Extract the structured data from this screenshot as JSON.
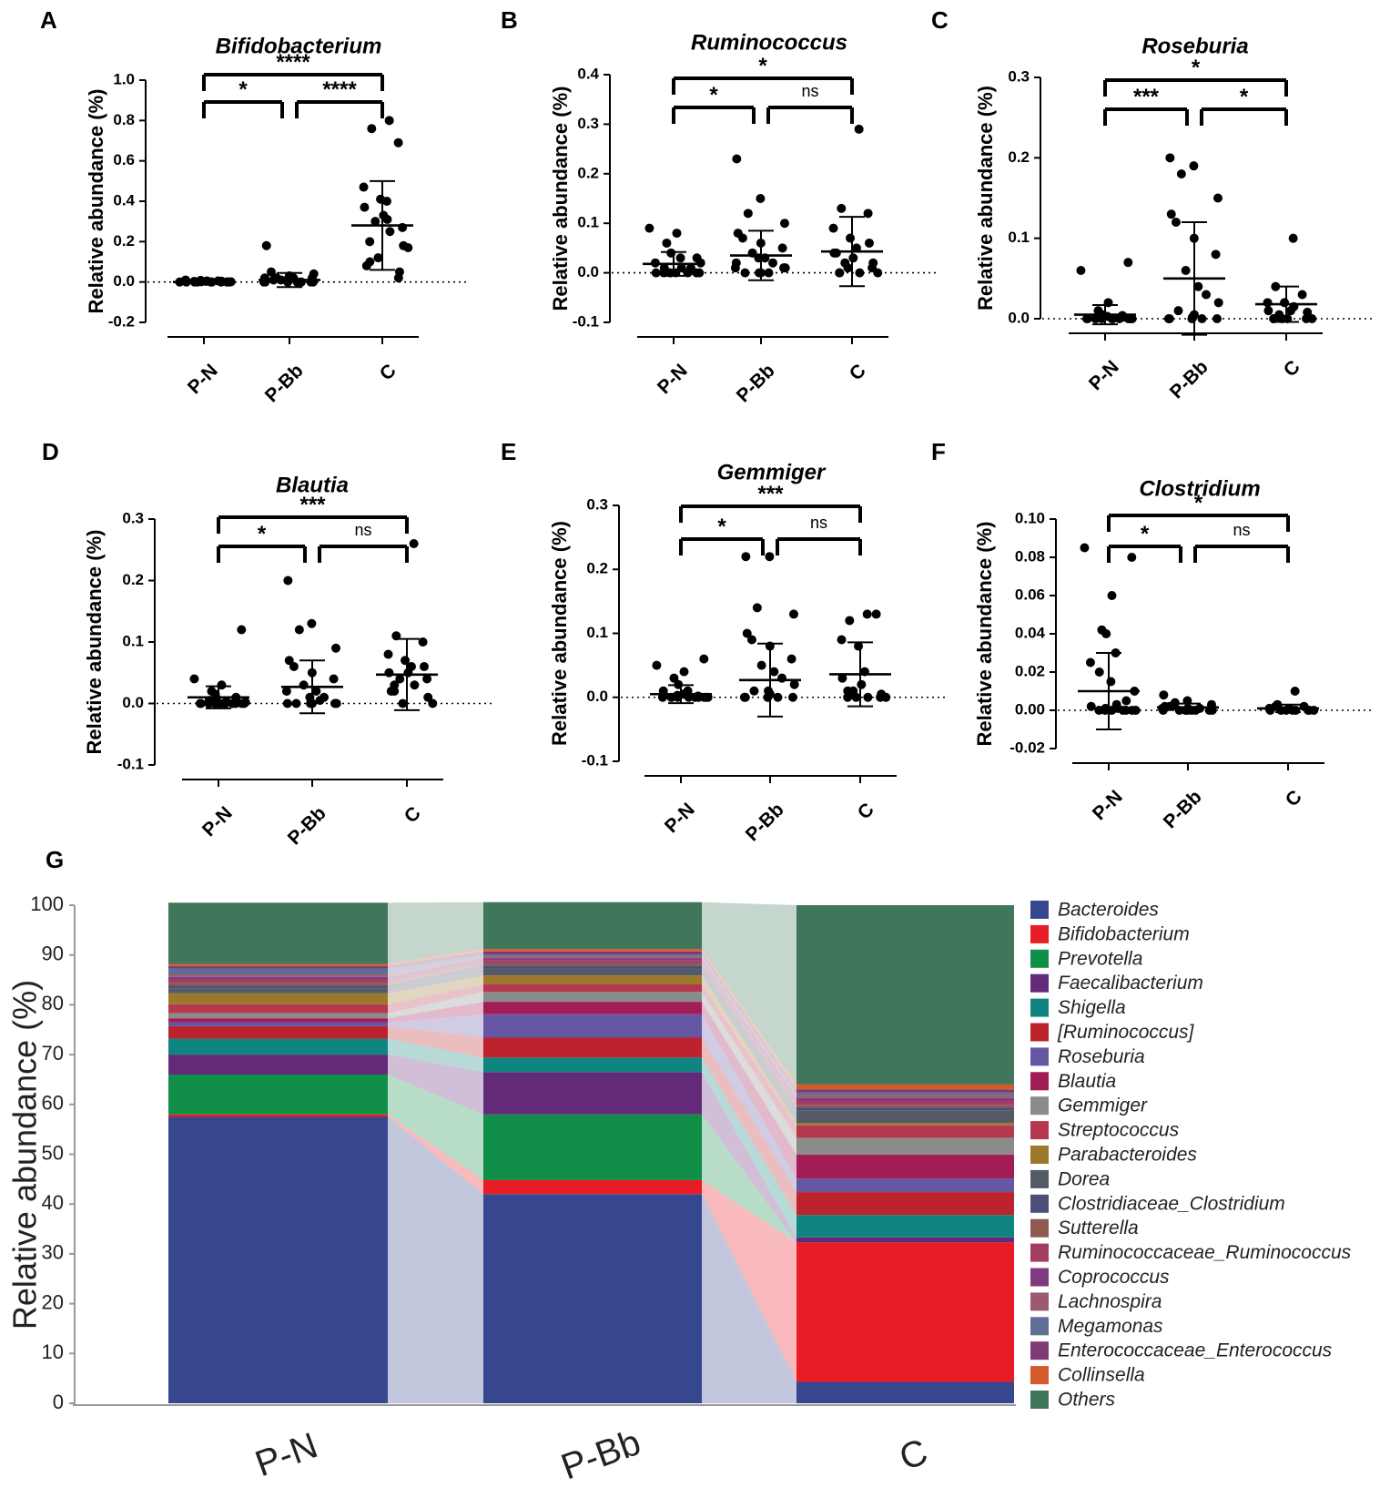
{
  "chart_data": [
    {
      "id": "A",
      "panel_label": "A",
      "type": "scatter",
      "title": "Bifidobacterium",
      "ylabel": "Relative abundance (%)",
      "categories": [
        "P-N",
        "P-Bb",
        "C"
      ],
      "ylim": [
        -0.2,
        1.0
      ],
      "yticks": [
        "1.0",
        "0.8",
        "0.6",
        "0.4",
        "0.2",
        "0.0",
        "-0.2"
      ],
      "mean": [
        0.0,
        0.01,
        0.28
      ],
      "sd": [
        0.006,
        0.035,
        0.22
      ],
      "points": [
        [
          0.0,
          0.0,
          0.005,
          0.0,
          0.002,
          0.0,
          0.01,
          0.0,
          0.003,
          0.0,
          0.004,
          0.0,
          0.001,
          0.0,
          0.008,
          0.0,
          0.002,
          0.0,
          0.003,
          0.005
        ],
        [
          0.0,
          0.01,
          0.02,
          0.0,
          0.18,
          0.05,
          0.03,
          0.0,
          0.01,
          0.02,
          0.0,
          0.04,
          0.01,
          0.0,
          0.02,
          0.0,
          0.03,
          0.01,
          0.0,
          0.02
        ],
        [
          0.8,
          0.76,
          0.69,
          0.47,
          0.41,
          0.4,
          0.37,
          0.33,
          0.3,
          0.27,
          0.25,
          0.2,
          0.18,
          0.17,
          0.12,
          0.1,
          0.08,
          0.05,
          0.02,
          0.31
        ]
      ],
      "comparisons": [
        {
          "pair": "P-N vs C",
          "label": "****"
        },
        {
          "pair": "P-N vs P-Bb",
          "label": "*"
        },
        {
          "pair": "P-Bb vs C",
          "label": "****"
        }
      ]
    },
    {
      "id": "B",
      "panel_label": "B",
      "type": "scatter",
      "title": "Ruminococcus",
      "ylabel": "Relative abundance (%)",
      "categories": [
        "P-N",
        "P-Bb",
        "C"
      ],
      "ylim": [
        -0.1,
        0.4
      ],
      "yticks": [
        "0.4",
        "0.3",
        "0.2",
        "0.1",
        "0.0",
        "-0.1"
      ],
      "mean": [
        0.018,
        0.035,
        0.043
      ],
      "sd": [
        0.024,
        0.05,
        0.07
      ],
      "points": [
        [
          0.0,
          0.09,
          0.08,
          0.06,
          0.04,
          0.03,
          0.02,
          0.01,
          0.0,
          0.0,
          0.005,
          0.0,
          0.02,
          0.01,
          0.0,
          0.03,
          0.0,
          0.01,
          0.0,
          0.0
        ],
        [
          0.23,
          0.15,
          0.12,
          0.1,
          0.08,
          0.07,
          0.06,
          0.05,
          0.04,
          0.03,
          0.02,
          0.01,
          0.0,
          0.0,
          0.02,
          0.01,
          0.0,
          0.03,
          0.0,
          0.01
        ],
        [
          0.29,
          0.13,
          0.12,
          0.09,
          0.07,
          0.05,
          0.04,
          0.03,
          0.02,
          0.01,
          0.0,
          0.0,
          0.02,
          0.0,
          0.01,
          0.0,
          0.04,
          0.06
        ]
      ],
      "comparisons": [
        {
          "pair": "P-N vs C",
          "label": "*"
        },
        {
          "pair": "P-N vs P-Bb",
          "label": "*"
        },
        {
          "pair": "P-Bb vs C",
          "label": "ns"
        }
      ]
    },
    {
      "id": "C",
      "panel_label": "C",
      "type": "scatter",
      "title": "Roseburia",
      "ylabel": "Relative abundance (%)",
      "categories": [
        "P-N",
        "P-Bb",
        "C"
      ],
      "ylim": [
        0.0,
        0.3
      ],
      "yticks": [
        "0.3",
        "0.2",
        "0.1",
        "0.0"
      ],
      "mean": [
        0.005,
        0.05,
        0.018
      ],
      "sd": [
        0.012,
        0.07,
        0.022
      ],
      "points": [
        [
          0.07,
          0.06,
          0.02,
          0.01,
          0.005,
          0.0,
          0.0,
          0.0,
          0.003,
          0.0,
          0.002,
          0.0,
          0.0,
          0.004,
          0.0,
          0.0,
          0.001,
          0.0,
          0.0,
          0.0
        ],
        [
          0.2,
          0.19,
          0.18,
          0.15,
          0.13,
          0.12,
          0.1,
          0.08,
          0.06,
          0.04,
          0.03,
          0.02,
          0.01,
          0.0,
          0.0,
          0.0,
          0.005,
          0.0,
          0.002,
          0.0
        ],
        [
          0.1,
          0.04,
          0.03,
          0.02,
          0.02,
          0.01,
          0.01,
          0.0,
          0.005,
          0.0,
          0.015,
          0.0,
          0.008,
          0.0,
          0.0,
          0.0
        ]
      ],
      "comparisons": [
        {
          "pair": "P-N vs C",
          "label": "*"
        },
        {
          "pair": "P-N vs P-Bb",
          "label": "***"
        },
        {
          "pair": "P-Bb vs C",
          "label": "*"
        }
      ]
    },
    {
      "id": "D",
      "panel_label": "D",
      "type": "scatter",
      "title": "Blautia",
      "ylabel": "Relative abundance (%)",
      "categories": [
        "P-N",
        "P-Bb",
        "C"
      ],
      "ylim": [
        -0.1,
        0.3
      ],
      "yticks": [
        "0.3",
        "0.2",
        "0.1",
        "0.0",
        "-0.1"
      ],
      "mean": [
        0.01,
        0.027,
        0.047
      ],
      "sd": [
        0.018,
        0.043,
        0.058
      ],
      "points": [
        [
          0.12,
          0.04,
          0.03,
          0.02,
          0.01,
          0.0,
          0.0,
          0.005,
          0.0,
          0.0,
          0.01,
          0.0,
          0.002,
          0.0,
          0.015,
          0.0,
          0.0,
          0.003,
          0.0,
          0.0
        ],
        [
          0.2,
          0.13,
          0.12,
          0.09,
          0.07,
          0.06,
          0.05,
          0.04,
          0.03,
          0.02,
          0.01,
          0.0,
          0.0,
          0.005,
          0.0,
          0.02,
          0.0,
          0.01,
          0.0,
          0.0
        ],
        [
          0.26,
          0.11,
          0.1,
          0.08,
          0.07,
          0.06,
          0.05,
          0.05,
          0.04,
          0.04,
          0.03,
          0.02,
          0.01,
          0.0,
          0.0,
          0.03,
          0.02,
          0.06
        ]
      ],
      "comparisons": [
        {
          "pair": "P-N vs C",
          "label": "***"
        },
        {
          "pair": "P-N vs P-Bb",
          "label": "*"
        },
        {
          "pair": "P-Bb vs C",
          "label": "ns"
        }
      ]
    },
    {
      "id": "E",
      "panel_label": "E",
      "type": "scatter",
      "title": "Gemmiger",
      "ylabel": "Relative abundance (%)",
      "categories": [
        "P-N",
        "P-Bb",
        "C"
      ],
      "ylim": [
        -0.1,
        0.3
      ],
      "yticks": [
        "0.3",
        "0.2",
        "0.1",
        "0.0",
        "-0.1"
      ],
      "mean": [
        0.005,
        0.027,
        0.036
      ],
      "sd": [
        0.014,
        0.057,
        0.05
      ],
      "points": [
        [
          0.06,
          0.05,
          0.04,
          0.03,
          0.02,
          0.01,
          0.0,
          0.0,
          0.005,
          0.0,
          0.0,
          0.01,
          0.0,
          0.002,
          0.0,
          0.0,
          0.003,
          0.0,
          0.0,
          0.0
        ],
        [
          0.22,
          0.22,
          0.14,
          0.13,
          0.1,
          0.09,
          0.08,
          0.06,
          0.05,
          0.04,
          0.03,
          0.02,
          0.01,
          0.0,
          0.0,
          0.0,
          0.005,
          0.0,
          0.01,
          0.0
        ],
        [
          0.13,
          0.12,
          0.13,
          0.09,
          0.08,
          0.04,
          0.03,
          0.02,
          0.01,
          0.0,
          0.0,
          0.0,
          0.005,
          0.0,
          0.0,
          0.01
        ]
      ],
      "comparisons": [
        {
          "pair": "P-N vs C",
          "label": "***"
        },
        {
          "pair": "P-N vs P-Bb",
          "label": "*"
        },
        {
          "pair": "P-Bb vs C",
          "label": "ns"
        }
      ]
    },
    {
      "id": "F",
      "panel_label": "F",
      "type": "scatter",
      "title": "Clostridium",
      "ylabel": "Relative abundance (%)",
      "categories": [
        "P-N",
        "P-Bb",
        "C"
      ],
      "ylim": [
        -0.02,
        0.1
      ],
      "yticks": [
        "0.10",
        "0.08",
        "0.06",
        "0.04",
        "0.02",
        "0.00",
        "-0.02"
      ],
      "mean": [
        0.01,
        0.0015,
        0.001
      ],
      "sd": [
        0.02,
        0.002,
        0.002
      ],
      "points": [
        [
          0.08,
          0.085,
          0.06,
          0.042,
          0.04,
          0.03,
          0.025,
          0.02,
          0.015,
          0.01,
          0.005,
          0.002,
          0.0,
          0.0,
          0.001,
          0.0,
          0.0,
          0.003,
          0.0,
          0.0,
          0.0,
          0.001
        ],
        [
          0.008,
          0.005,
          0.004,
          0.003,
          0.002,
          0.002,
          0.001,
          0.0,
          0.0,
          0.0,
          0.001,
          0.0,
          0.002,
          0.0,
          0.0,
          0.001,
          0.0,
          0.0
        ],
        [
          0.01,
          0.003,
          0.002,
          0.001,
          0.0,
          0.0,
          0.0,
          0.001,
          0.0,
          0.0,
          0.0,
          0.002,
          0.0,
          0.0
        ]
      ],
      "comparisons": [
        {
          "pair": "P-N vs C",
          "label": "*"
        },
        {
          "pair": "P-N vs P-Bb",
          "label": "*"
        },
        {
          "pair": "P-Bb vs C",
          "label": "ns"
        }
      ]
    },
    {
      "id": "G",
      "panel_label": "G",
      "type": "bar",
      "stacked": true,
      "ylabel": "Relative abundance (%)",
      "ylim": [
        0,
        100
      ],
      "yticks": [
        "100",
        "90",
        "80",
        "70",
        "60",
        "50",
        "40",
        "30",
        "20",
        "10",
        "0"
      ],
      "categories": [
        "P-N",
        "P-Bb",
        "C"
      ],
      "series": [
        {
          "name": "Bacteroides",
          "color": "#36478f",
          "values": [
            57.5,
            42.0,
            4.3
          ]
        },
        {
          "name": "Bifidobacterium",
          "color": "#e81c25",
          "values": [
            0.5,
            2.8,
            28.0
          ]
        },
        {
          "name": "Prevotella",
          "color": "#118e48",
          "values": [
            8.0,
            13.2,
            0.0
          ]
        },
        {
          "name": "Faecalibacterium",
          "color": "#622a79",
          "values": [
            4.0,
            8.5,
            1.0
          ]
        },
        {
          "name": "Shigella",
          "color": "#0f8480",
          "values": [
            3.2,
            2.9,
            4.5
          ]
        },
        {
          "name": "[Ruminococcus]",
          "color": "#bc232c",
          "values": [
            2.5,
            4.0,
            4.6
          ]
        },
        {
          "name": "Roseburia",
          "color": "#6557a4",
          "values": [
            0.8,
            4.7,
            2.7
          ]
        },
        {
          "name": "Blautia",
          "color": "#a21c56",
          "values": [
            0.8,
            2.5,
            4.8
          ]
        },
        {
          "name": "Gemmiger",
          "color": "#898c89",
          "values": [
            1.0,
            2.0,
            3.4
          ]
        },
        {
          "name": "Streptococcus",
          "color": "#b5384f",
          "values": [
            1.8,
            1.5,
            2.5
          ]
        },
        {
          "name": "Parabacteroides",
          "color": "#9d772b",
          "values": [
            2.2,
            1.8,
            0.5
          ]
        },
        {
          "name": "Dorea",
          "color": "#545b67",
          "values": [
            1.0,
            1.4,
            2.5
          ]
        },
        {
          "name": "Clostridiaceae_Clostridium",
          "color": "#4e507a",
          "values": [
            0.6,
            0.6,
            0.6
          ]
        },
        {
          "name": "Sutterella",
          "color": "#8e5950",
          "values": [
            0.5,
            0.5,
            0.5
          ]
        },
        {
          "name": "Ruminococcaceae_Ruminococcus",
          "color": "#a33d61",
          "values": [
            0.7,
            0.5,
            0.8
          ]
        },
        {
          "name": "Coprococcus",
          "color": "#803a80",
          "values": [
            0.5,
            0.4,
            0.6
          ]
        },
        {
          "name": "Lachnospira",
          "color": "#9b5a71",
          "values": [
            0.5,
            0.4,
            0.6
          ]
        },
        {
          "name": "Megamonas",
          "color": "#606d95",
          "values": [
            1.2,
            0.4,
            0.5
          ]
        },
        {
          "name": "Enterococcaceae_Enterococcus",
          "color": "#7d3a75",
          "values": [
            0.5,
            0.6,
            0.6
          ]
        },
        {
          "name": "Collinsella",
          "color": "#d45a2b",
          "values": [
            0.4,
            0.5,
            1.0
          ]
        },
        {
          "name": "Others",
          "color": "#40765a",
          "values": [
            12.3,
            9.4,
            36.0
          ]
        }
      ]
    }
  ]
}
